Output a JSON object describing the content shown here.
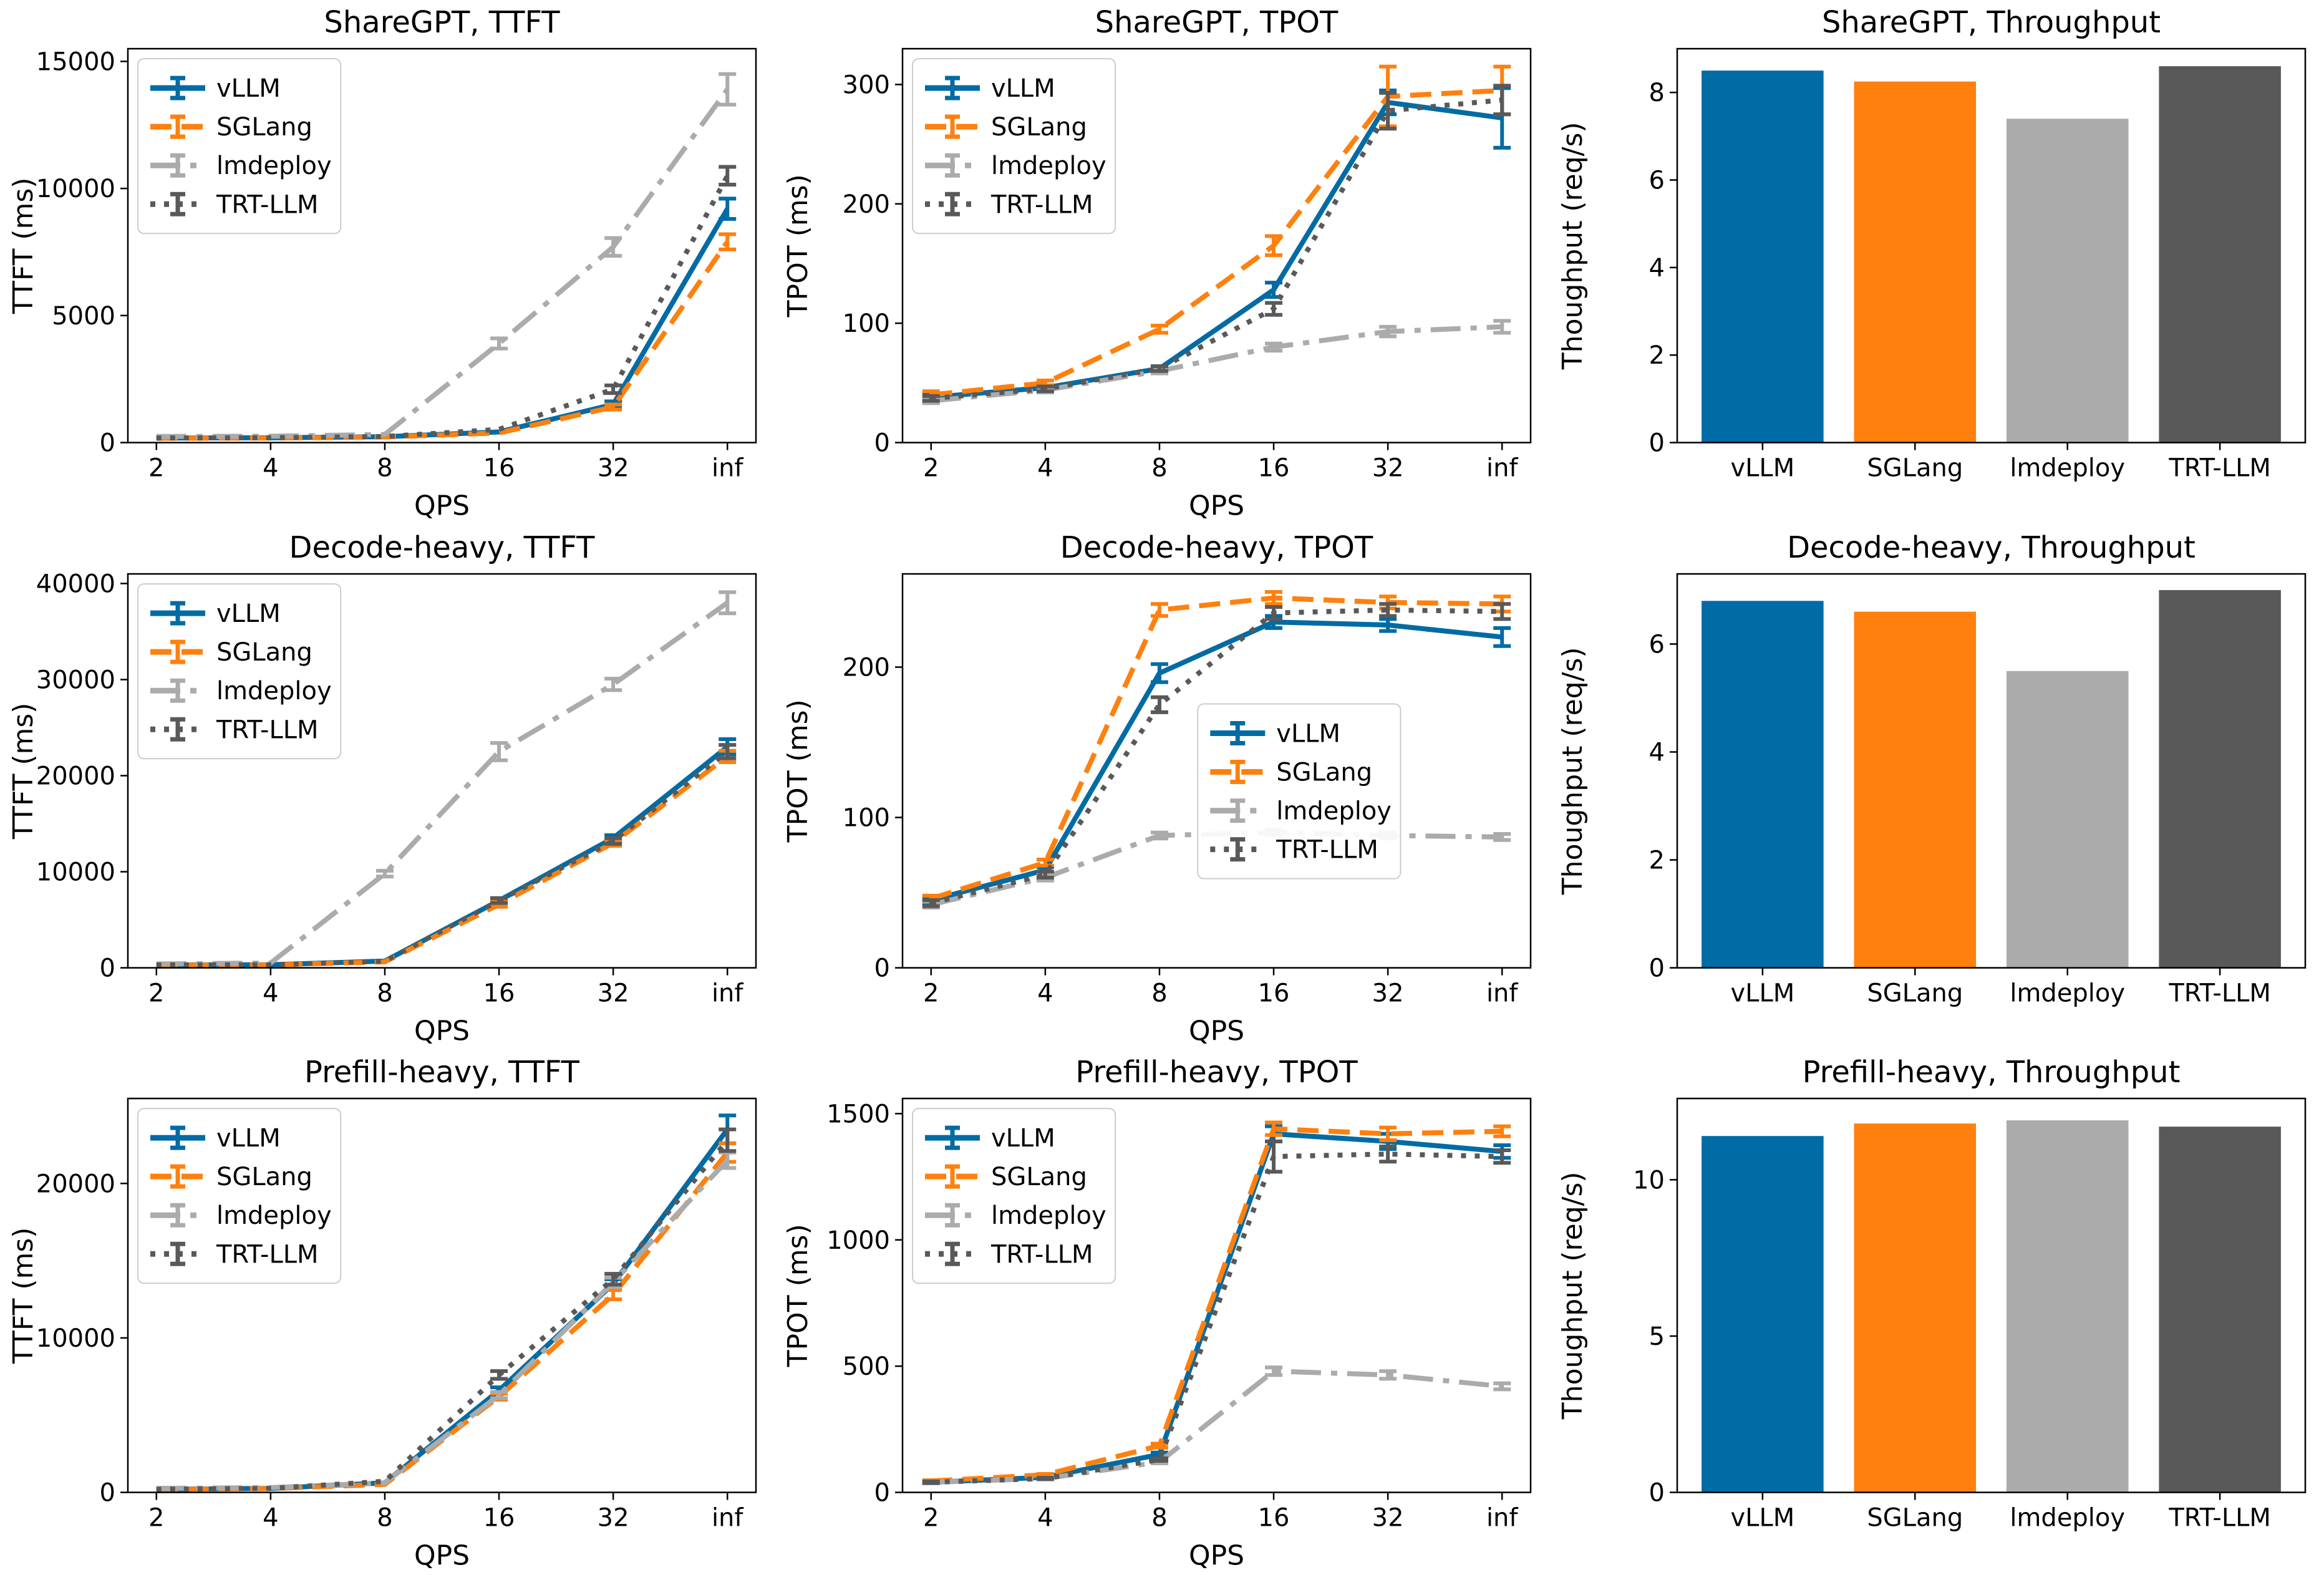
{
  "page": {
    "background": "#ffffff"
  },
  "frameworks": [
    {
      "name": "vLLM",
      "color": "#006BA4",
      "style": "solid"
    },
    {
      "name": "SGLang",
      "color": "#FF800E",
      "style": "dashed"
    },
    {
      "name": "lmdeploy",
      "color": "#ABABAB",
      "style": "dashdot"
    },
    {
      "name": "TRT-LLM",
      "color": "#595959",
      "style": "dotted"
    }
  ],
  "chart_data": [
    {
      "id": "sharegpt-ttft",
      "type": "line",
      "title": "ShareGPT, TTFT",
      "xlabel": "QPS",
      "ylabel": "TTFT (ms)",
      "categories": [
        "2",
        "4",
        "8",
        "16",
        "32",
        "inf"
      ],
      "ylim": [
        0,
        15500
      ],
      "yticks": [
        0,
        5000,
        10000,
        15000
      ],
      "grid": false,
      "legend_loc": "upper-left",
      "series": [
        {
          "name": "vLLM",
          "color": "#006BA4",
          "style": "solid",
          "values": [
            180,
            190,
            230,
            420,
            1500,
            9200
          ],
          "err": [
            0,
            0,
            0,
            0,
            120,
            400
          ]
        },
        {
          "name": "SGLang",
          "color": "#FF800E",
          "style": "dashed",
          "values": [
            170,
            180,
            220,
            380,
            1400,
            7900
          ],
          "err": [
            0,
            0,
            0,
            0,
            100,
            300
          ]
        },
        {
          "name": "lmdeploy",
          "color": "#ABABAB",
          "style": "dashdot",
          "values": [
            240,
            250,
            320,
            3900,
            7700,
            13900
          ],
          "err": [
            0,
            0,
            0,
            200,
            350,
            600
          ]
        },
        {
          "name": "TRT-LLM",
          "color": "#595959",
          "style": "dotted",
          "values": [
            180,
            190,
            240,
            520,
            2100,
            10500
          ],
          "err": [
            0,
            0,
            0,
            0,
            150,
            350
          ]
        }
      ]
    },
    {
      "id": "sharegpt-tpot",
      "type": "line",
      "title": "ShareGPT, TPOT",
      "xlabel": "QPS",
      "ylabel": "TPOT (ms)",
      "categories": [
        "2",
        "4",
        "8",
        "16",
        "32",
        "inf"
      ],
      "ylim": [
        0,
        330
      ],
      "yticks": [
        0,
        100,
        200,
        300
      ],
      "grid": false,
      "legend_loc": "upper-left",
      "series": [
        {
          "name": "vLLM",
          "color": "#006BA4",
          "style": "solid",
          "values": [
            38,
            46,
            62,
            128,
            285,
            272
          ],
          "err": [
            3,
            2,
            2,
            6,
            10,
            25
          ]
        },
        {
          "name": "SGLang",
          "color": "#FF800E",
          "style": "dashed",
          "values": [
            40,
            50,
            95,
            165,
            290,
            295
          ],
          "err": [
            3,
            2,
            3,
            8,
            25,
            20
          ]
        },
        {
          "name": "lmdeploy",
          "color": "#ABABAB",
          "style": "dashdot",
          "values": [
            35,
            44,
            60,
            80,
            93,
            97
          ],
          "err": [
            2,
            2,
            2,
            3,
            4,
            5
          ]
        },
        {
          "name": "TRT-LLM",
          "color": "#595959",
          "style": "dotted",
          "values": [
            37,
            45,
            62,
            112,
            278,
            287
          ],
          "err": [
            2,
            2,
            2,
            5,
            15,
            12
          ]
        }
      ]
    },
    {
      "id": "sharegpt-throughput",
      "type": "bar",
      "title": "ShareGPT, Throughput",
      "xlabel": "",
      "ylabel": "Thoughput (req/s)",
      "categories": [
        "vLLM",
        "SGLang",
        "lmdeploy",
        "TRT-LLM"
      ],
      "values": [
        8.5,
        8.25,
        7.4,
        8.6
      ],
      "colors": [
        "#006BA4",
        "#FF800E",
        "#ABABAB",
        "#595959"
      ],
      "ylim": [
        0,
        9
      ],
      "yticks": [
        0,
        2,
        4,
        6,
        8
      ],
      "grid": false
    },
    {
      "id": "decode-heavy-ttft",
      "type": "line",
      "title": "Decode-heavy, TTFT",
      "xlabel": "QPS",
      "ylabel": "TTFT (ms)",
      "categories": [
        "2",
        "4",
        "8",
        "16",
        "32",
        "inf"
      ],
      "ylim": [
        0,
        41000
      ],
      "yticks": [
        0,
        10000,
        20000,
        30000,
        40000
      ],
      "grid": false,
      "legend_loc": "upper-left",
      "series": [
        {
          "name": "vLLM",
          "color": "#006BA4",
          "style": "solid",
          "values": [
            300,
            320,
            700,
            7000,
            13500,
            23000
          ],
          "err": [
            0,
            0,
            0,
            250,
            300,
            800
          ]
        },
        {
          "name": "SGLang",
          "color": "#FF800E",
          "style": "dashed",
          "values": [
            280,
            300,
            620,
            6600,
            13000,
            22000
          ],
          "err": [
            0,
            0,
            0,
            250,
            300,
            600
          ]
        },
        {
          "name": "lmdeploy",
          "color": "#ABABAB",
          "style": "dashdot",
          "values": [
            400,
            500,
            9800,
            22500,
            29500,
            38000
          ],
          "err": [
            0,
            0,
            300,
            900,
            600,
            1100
          ]
        },
        {
          "name": "TRT-LLM",
          "color": "#595959",
          "style": "dotted",
          "values": [
            300,
            320,
            700,
            7000,
            13200,
            22500
          ],
          "err": [
            0,
            0,
            0,
            250,
            300,
            700
          ]
        }
      ]
    },
    {
      "id": "decode-heavy-tpot",
      "type": "line",
      "title": "Decode-heavy, TPOT",
      "xlabel": "QPS",
      "ylabel": "TPOT (ms)",
      "categories": [
        "2",
        "4",
        "8",
        "16",
        "32",
        "inf"
      ],
      "ylim": [
        0,
        262
      ],
      "yticks": [
        0,
        100,
        200
      ],
      "grid": false,
      "legend_loc": "center-right",
      "series": [
        {
          "name": "vLLM",
          "color": "#006BA4",
          "style": "solid",
          "values": [
            45,
            65,
            196,
            230,
            228,
            220
          ],
          "err": [
            2,
            2,
            6,
            4,
            4,
            6
          ]
        },
        {
          "name": "SGLang",
          "color": "#FF800E",
          "style": "dashed",
          "values": [
            46,
            70,
            238,
            246,
            243,
            242
          ],
          "err": [
            2,
            2,
            4,
            4,
            4,
            5
          ]
        },
        {
          "name": "lmdeploy",
          "color": "#ABABAB",
          "style": "dashdot",
          "values": [
            42,
            60,
            88,
            90,
            88,
            87
          ],
          "err": [
            2,
            2,
            2,
            2,
            2,
            2
          ]
        },
        {
          "name": "TRT-LLM",
          "color": "#595959",
          "style": "dotted",
          "values": [
            43,
            62,
            175,
            236,
            238,
            237
          ],
          "err": [
            2,
            2,
            5,
            4,
            4,
            5
          ]
        }
      ]
    },
    {
      "id": "decode-heavy-throughput",
      "type": "bar",
      "title": "Decode-heavy, Throughput",
      "xlabel": "",
      "ylabel": "Thoughput (req/s)",
      "categories": [
        "vLLM",
        "SGLang",
        "lmdeploy",
        "TRT-LLM"
      ],
      "values": [
        6.8,
        6.6,
        5.5,
        7.0
      ],
      "colors": [
        "#006BA4",
        "#FF800E",
        "#ABABAB",
        "#595959"
      ],
      "ylim": [
        0,
        7.3
      ],
      "yticks": [
        0,
        2,
        4,
        6
      ],
      "grid": false
    },
    {
      "id": "prefill-heavy-ttft",
      "type": "line",
      "title": "Prefill-heavy, TTFT",
      "xlabel": "QPS",
      "ylabel": "TTFT (ms)",
      "categories": [
        "2",
        "4",
        "8",
        "16",
        "32",
        "inf"
      ],
      "ylim": [
        0,
        25500
      ],
      "yticks": [
        0,
        10000,
        20000
      ],
      "grid": false,
      "legend_loc": "upper-left",
      "series": [
        {
          "name": "vLLM",
          "color": "#006BA4",
          "style": "solid",
          "values": [
            200,
            260,
            620,
            6600,
            13500,
            23500
          ],
          "err": [
            0,
            0,
            0,
            200,
            300,
            900
          ]
        },
        {
          "name": "SGLang",
          "color": "#FF800E",
          "style": "dashed",
          "values": [
            190,
            250,
            520,
            6200,
            12800,
            22000
          ],
          "err": [
            0,
            0,
            0,
            200,
            300,
            600
          ]
        },
        {
          "name": "lmdeploy",
          "color": "#ABABAB",
          "style": "dashdot",
          "values": [
            260,
            310,
            620,
            6300,
            13600,
            21500
          ],
          "err": [
            0,
            0,
            0,
            200,
            300,
            500
          ]
        },
        {
          "name": "TRT-LLM",
          "color": "#595959",
          "style": "dotted",
          "values": [
            200,
            260,
            720,
            7600,
            13800,
            22800
          ],
          "err": [
            0,
            0,
            0,
            250,
            350,
            700
          ]
        }
      ]
    },
    {
      "id": "prefill-heavy-tpot",
      "type": "line",
      "title": "Prefill-heavy, TPOT",
      "xlabel": "QPS",
      "ylabel": "TPOT (ms)",
      "categories": [
        "2",
        "4",
        "8",
        "16",
        "32",
        "inf"
      ],
      "ylim": [
        0,
        1560
      ],
      "yticks": [
        0,
        500,
        1000,
        1500
      ],
      "grid": false,
      "legend_loc": "upper-left",
      "series": [
        {
          "name": "vLLM",
          "color": "#006BA4",
          "style": "solid",
          "values": [
            40,
            60,
            150,
            1420,
            1390,
            1350
          ],
          "err": [
            3,
            3,
            8,
            30,
            30,
            25
          ]
        },
        {
          "name": "SGLang",
          "color": "#FF800E",
          "style": "dashed",
          "values": [
            45,
            70,
            185,
            1440,
            1420,
            1430
          ],
          "err": [
            3,
            3,
            8,
            25,
            25,
            20
          ]
        },
        {
          "name": "lmdeploy",
          "color": "#ABABAB",
          "style": "dashdot",
          "values": [
            40,
            55,
            120,
            480,
            465,
            420
          ],
          "err": [
            3,
            3,
            5,
            15,
            15,
            12
          ]
        },
        {
          "name": "TRT-LLM",
          "color": "#595959",
          "style": "dotted",
          "values": [
            40,
            55,
            130,
            1330,
            1340,
            1330
          ],
          "err": [
            3,
            3,
            5,
            60,
            30,
            25
          ]
        }
      ]
    },
    {
      "id": "prefill-heavy-throughput",
      "type": "bar",
      "title": "Prefill-heavy, Throughput",
      "xlabel": "",
      "ylabel": "Thoughput (req/s)",
      "categories": [
        "vLLM",
        "SGLang",
        "lmdeploy",
        "TRT-LLM"
      ],
      "values": [
        11.4,
        11.8,
        11.9,
        11.7
      ],
      "colors": [
        "#006BA4",
        "#FF800E",
        "#ABABAB",
        "#595959"
      ],
      "ylim": [
        0,
        12.6
      ],
      "yticks": [
        0,
        5,
        10
      ],
      "grid": false
    }
  ]
}
